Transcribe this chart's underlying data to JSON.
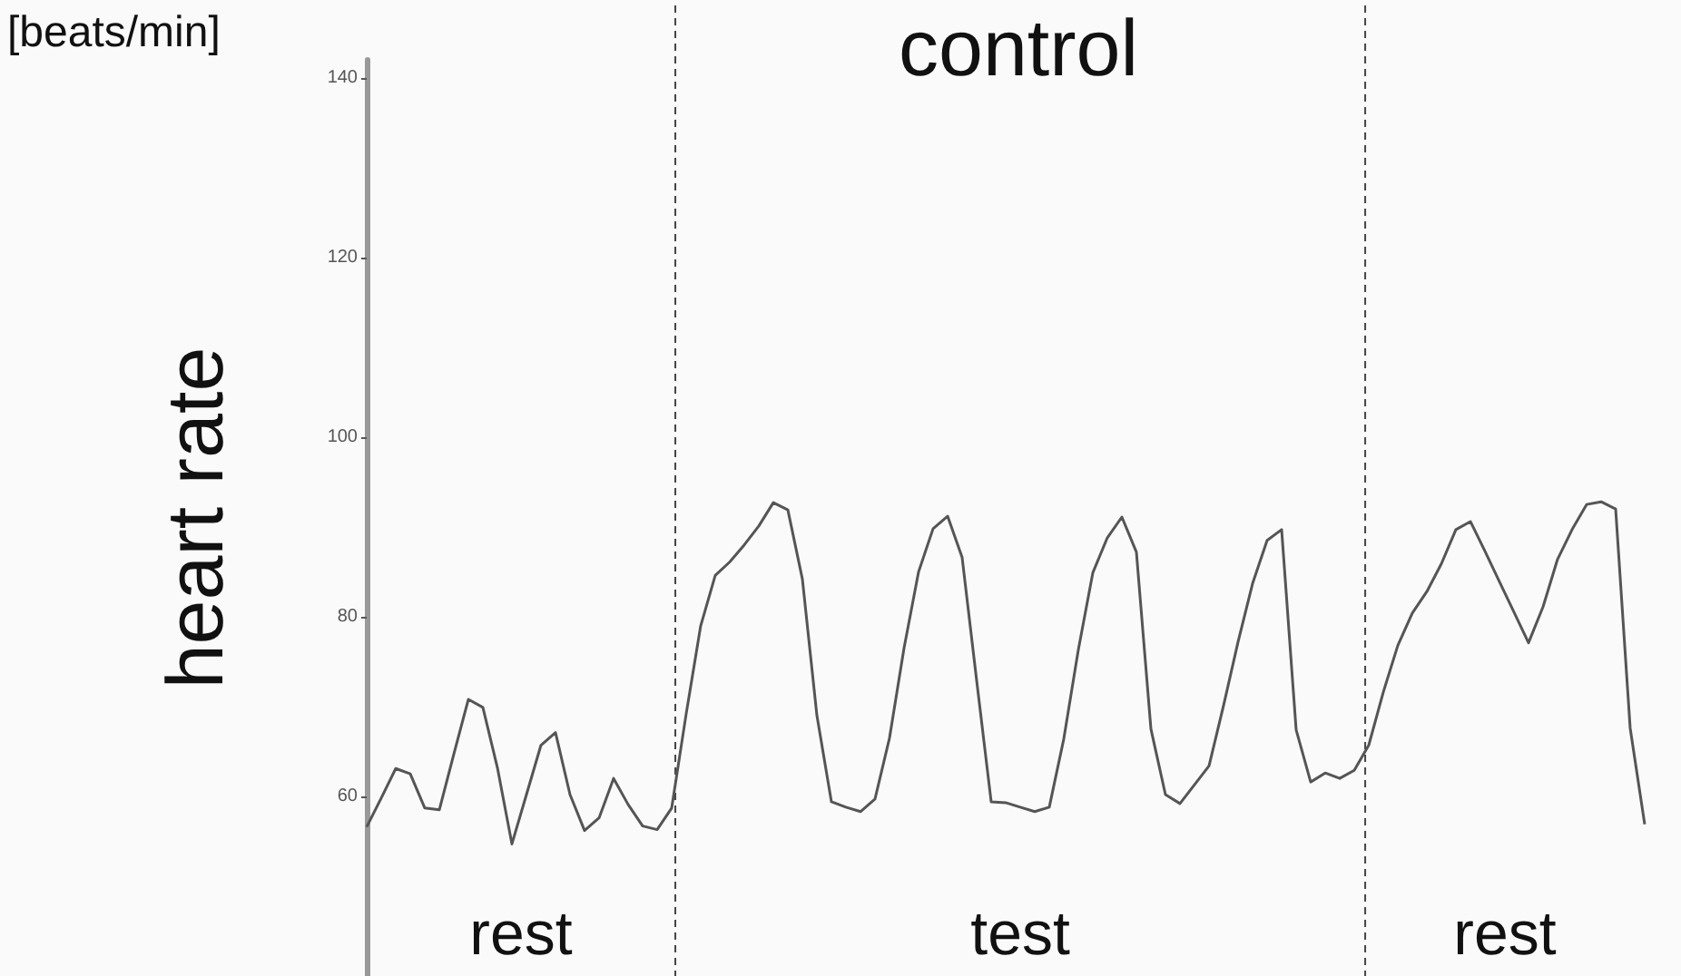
{
  "chart_data": {
    "type": "line",
    "title": "control",
    "ylabel": "heart rate",
    "annotations": [
      "[beats/min]",
      "rest",
      "test",
      "rest"
    ],
    "categories": [
      null,
      null,
      null,
      null,
      null,
      null,
      null,
      null,
      null,
      null,
      null,
      null,
      null,
      null,
      null,
      null,
      null,
      null,
      null,
      null,
      null,
      null,
      null,
      null,
      null,
      null,
      null,
      null,
      null,
      null,
      null,
      null,
      null,
      null,
      null,
      null,
      null,
      null,
      null,
      null,
      null,
      null,
      null,
      null,
      null,
      null,
      null,
      null,
      null,
      null,
      null,
      null,
      null,
      null,
      null,
      null,
      null,
      null,
      null,
      null,
      null,
      null,
      null,
      null,
      null,
      null,
      null,
      null,
      null,
      null,
      null,
      null,
      null,
      null,
      null,
      null,
      null,
      null,
      null,
      null,
      null,
      null,
      null,
      null,
      null,
      null,
      null,
      null,
      null
    ],
    "ylim": [
      40,
      142
    ],
    "yticks": [
      60,
      80,
      100,
      120,
      140
    ],
    "tick_labels": "y",
    "grid": false,
    "line_style": "solid",
    "series": [
      {
        "color": "#555555",
        "values": [
          56.6,
          59.8,
          63.1,
          62.5,
          58.7,
          58.5,
          64.7,
          70.8,
          69.9,
          63.2,
          54.7,
          60.2,
          65.7,
          67.1,
          60.2,
          56.2,
          57.6,
          62.0,
          59.1,
          56.7,
          56.3,
          58.7,
          69.2,
          79.0,
          84.6,
          86.1,
          88.0,
          90.1,
          92.7,
          91.9,
          84.2,
          69.0,
          59.4,
          58.8,
          58.3,
          59.7,
          66.5,
          76.5,
          85.0,
          89.8,
          91.2,
          86.6,
          72.9,
          59.4,
          59.3,
          58.8,
          58.3,
          58.8,
          66.4,
          76.3,
          84.9,
          88.8,
          91.1,
          87.2,
          67.5,
          60.2,
          59.2,
          61.3,
          63.4,
          70.1,
          77.2,
          83.7,
          88.5,
          89.7,
          67.4,
          61.6,
          62.6,
          62.0,
          62.9,
          65.7,
          71.6,
          76.8,
          80.4,
          82.8,
          85.9,
          89.7,
          90.6,
          87.3,
          83.9,
          80.5,
          77.1,
          81.1,
          86.4,
          89.7,
          92.5,
          92.8,
          92.0,
          67.6,
          56.9
        ]
      }
    ]
  }
}
